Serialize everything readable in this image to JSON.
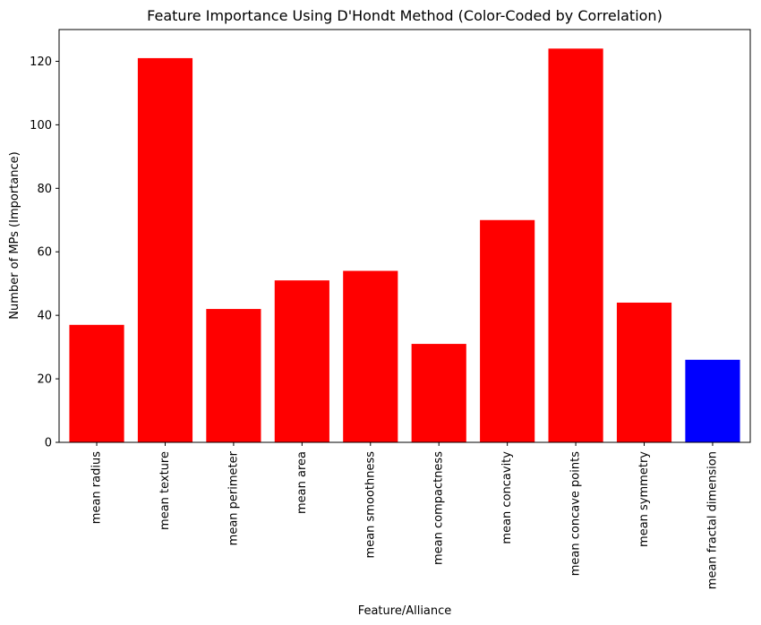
{
  "chart_data": {
    "type": "bar",
    "title": "Feature Importance Using D'Hondt Method (Color-Coded by Correlation)",
    "xlabel": "Feature/Alliance",
    "ylabel": "Number of MPs (Importance)",
    "categories": [
      "mean radius",
      "mean texture",
      "mean perimeter",
      "mean area",
      "mean smoothness",
      "mean compactness",
      "mean concavity",
      "mean concave points",
      "mean symmetry",
      "mean fractal dimension"
    ],
    "values": [
      37,
      121,
      42,
      51,
      54,
      31,
      70,
      124,
      44,
      26
    ],
    "bar_colors": [
      "#ff0000",
      "#ff0000",
      "#ff0000",
      "#ff0000",
      "#ff0000",
      "#ff0000",
      "#ff0000",
      "#ff0000",
      "#ff0000",
      "#0000ff"
    ],
    "ylim": [
      0,
      130
    ],
    "yticks": [
      0,
      20,
      40,
      60,
      80,
      100,
      120
    ],
    "grid": false,
    "legend": "none"
  }
}
